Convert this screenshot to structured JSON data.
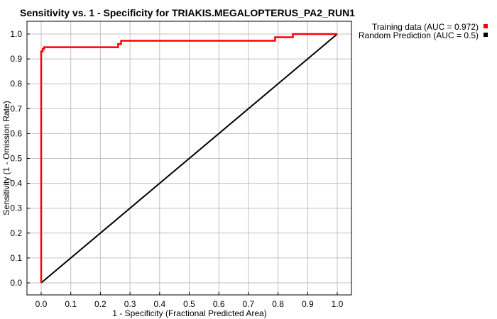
{
  "chart_data": {
    "type": "line",
    "title": "Sensitivity vs. 1 - Specificity for TRIAKIS.MEGALOPTERUS_PA2_RUN1",
    "xlabel": "1 - Specificity  (Fractional Predicted Area)",
    "ylabel": "Sensitivity  (1 - Omission Rate)",
    "xlim": [
      0,
      1.0
    ],
    "ylim": [
      0,
      1.0
    ],
    "x_ticks": [
      "0.0",
      "0.1",
      "0.2",
      "0.3",
      "0.4",
      "0.5",
      "0.6",
      "0.7",
      "0.8",
      "0.9",
      "1.0"
    ],
    "y_ticks": [
      "0.0",
      "0.1",
      "0.2",
      "0.3",
      "0.4",
      "0.5",
      "0.6",
      "0.7",
      "0.8",
      "0.9",
      "1.0"
    ],
    "grid": true,
    "legend_position": "right",
    "series": [
      {
        "name": "Training data (AUC = 0.972)",
        "color": "#ff0000",
        "x": [
          0.0,
          0.0,
          0.005,
          0.005,
          0.01,
          0.01,
          0.26,
          0.26,
          0.27,
          0.27,
          0.79,
          0.79,
          0.85,
          0.85,
          1.0
        ],
        "y": [
          0.0,
          0.93,
          0.93,
          0.94,
          0.94,
          0.947,
          0.947,
          0.96,
          0.96,
          0.973,
          0.973,
          0.987,
          0.987,
          1.0,
          1.0
        ]
      },
      {
        "name": "Random Prediction (AUC = 0.5)",
        "color": "#000000",
        "x": [
          0.0,
          1.0
        ],
        "y": [
          0.0,
          1.0
        ]
      }
    ]
  }
}
